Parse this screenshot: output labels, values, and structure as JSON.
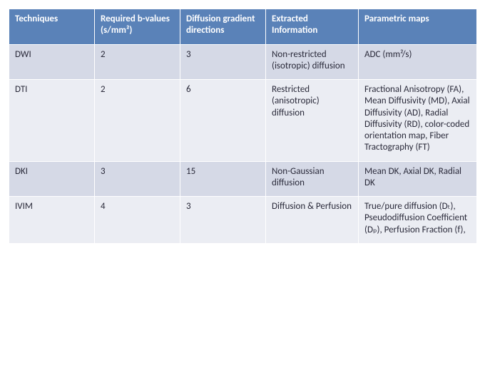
{
  "table": {
    "columns": [
      "Techniques",
      "Required b-values (s/mm²)",
      "Diffusion gradient directions",
      "Extracted Information",
      "Parametric maps"
    ],
    "rows": [
      {
        "technique": "DWI",
        "bvalues": "2",
        "directions": "3",
        "info": "Non-restricted (isotropic) diffusion",
        "maps": "ADC (mm²/s)"
      },
      {
        "technique": "DTI",
        "bvalues": "2",
        "directions": "6",
        "info": "Restricted (anisotropic) diffusion",
        "maps": "Fractional Anisotropy (FA), Mean Diffusivity (MD), Axial Diffusivity (AD), Radial Diffusivity (RD), color-coded orientation map, Fiber Tractography (FT)"
      },
      {
        "technique": "DKI",
        "bvalues": "3",
        "directions": "15",
        "info": "Non-Gaussian diffusion",
        "maps": "Mean DK, Axial DK, Radial DK"
      },
      {
        "technique": "IVIM",
        "bvalues": "4",
        "directions": "3",
        "info": "Diffusion & Perfusion",
        "maps": "True/pure diffusion (Dₜ), Pseudodiffusion Coefficient (Dₚ), Perfusion Fraction (f),"
      }
    ]
  }
}
